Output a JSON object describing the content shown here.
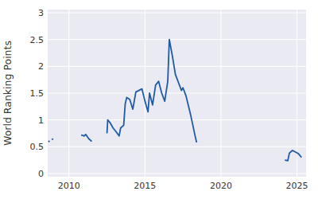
{
  "chart_data": {
    "type": "line",
    "y_label": "World Ranking Points",
    "x": [
      2008.65,
      2008.72,
      2008.74,
      2008.88,
      2008.95,
      2008.97,
      2010.8,
      2010.9,
      2011.0,
      2011.1,
      2011.3,
      2011.5,
      2011.55,
      2012.5,
      2012.55,
      2012.7,
      2012.9,
      2013.1,
      2013.3,
      2013.4,
      2013.6,
      2013.7,
      2013.8,
      2014.0,
      2014.2,
      2014.4,
      2014.6,
      2014.8,
      2015.0,
      2015.2,
      2015.3,
      2015.5,
      2015.7,
      2015.9,
      2016.1,
      2016.3,
      2016.5,
      2016.6,
      2016.8,
      2017.0,
      2017.2,
      2017.4,
      2017.5,
      2017.7,
      2018.0,
      2018.3,
      2018.4,
      2018.45,
      2024.2,
      2024.4,
      2024.5,
      2024.7,
      2024.9,
      2025.1,
      2025.3
    ],
    "values": [
      0.59,
      0.61,
      null,
      0.63,
      0.65,
      null,
      0.72,
      0.71,
      0.7,
      0.73,
      0.65,
      0.6,
      null,
      0.75,
      1.0,
      0.95,
      0.85,
      0.78,
      0.7,
      0.85,
      0.9,
      1.3,
      1.42,
      1.38,
      1.2,
      1.52,
      1.55,
      1.58,
      1.35,
      1.15,
      1.5,
      1.28,
      1.65,
      1.72,
      1.5,
      1.35,
      1.72,
      2.5,
      2.2,
      1.85,
      1.7,
      1.55,
      1.6,
      1.45,
      1.1,
      0.7,
      0.58,
      null,
      0.25,
      0.24,
      0.38,
      0.43,
      0.4,
      0.37,
      0.3
    ],
    "color": "#1f5aa6",
    "xlim": [
      2008.6,
      2025.6
    ],
    "ylim": [
      -0.06,
      3.06
    ],
    "xticks": [
      2010,
      2015,
      2020,
      2025
    ],
    "yticks": [
      0,
      0.5,
      1,
      1.5,
      2,
      2.5,
      3
    ],
    "grid": true
  }
}
